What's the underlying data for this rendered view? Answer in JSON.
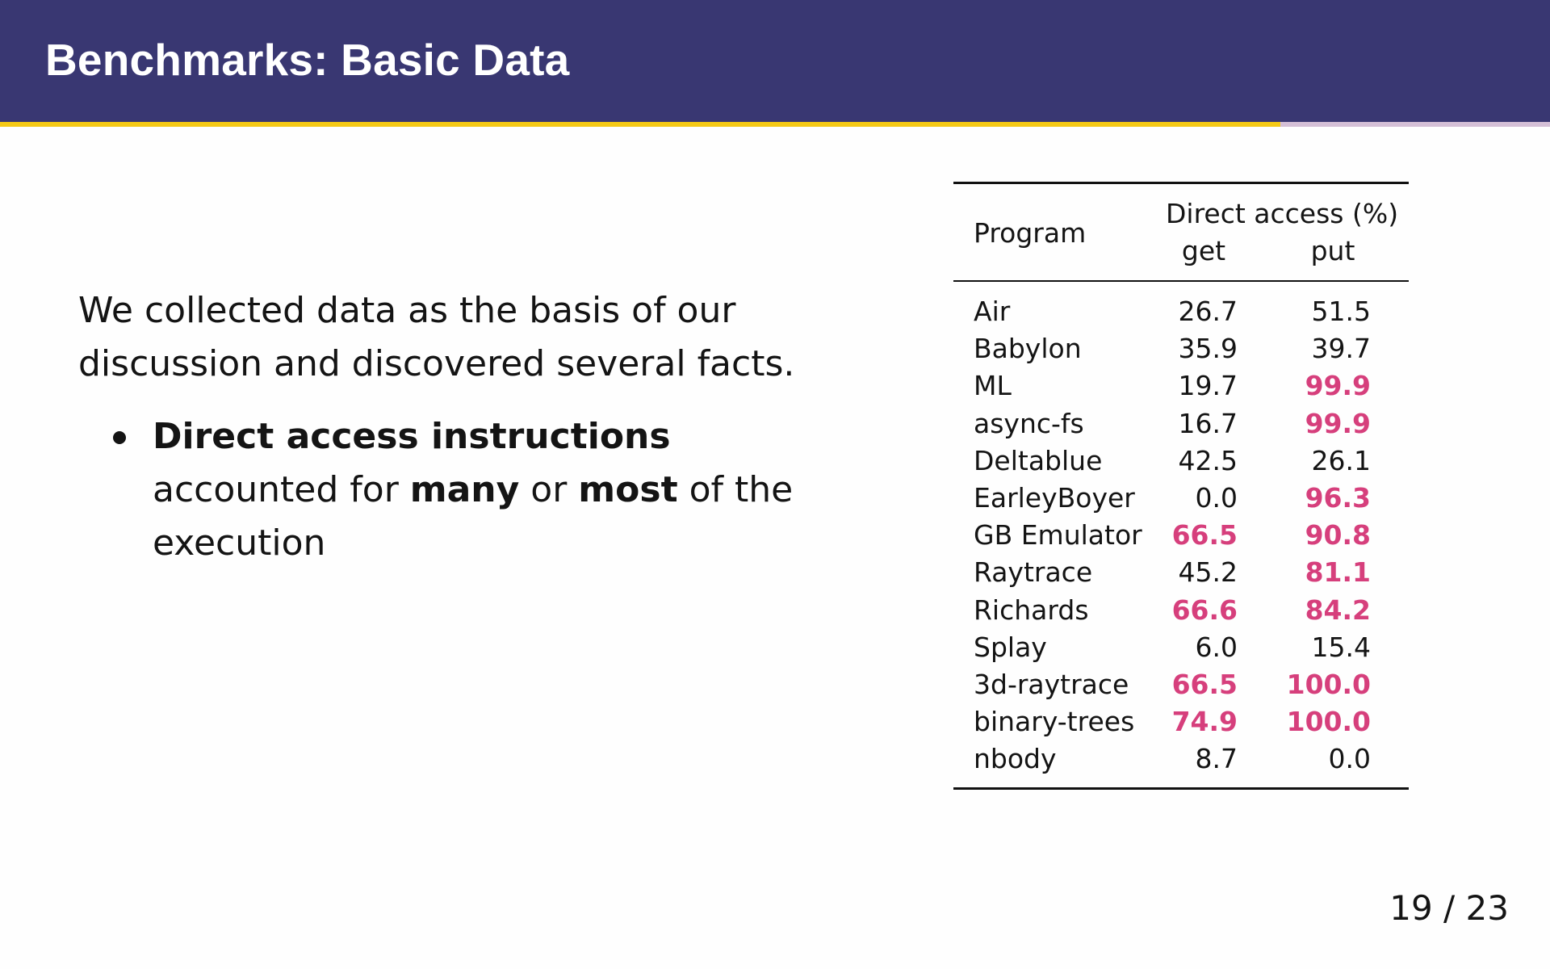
{
  "header": {
    "title": "Benchmarks: Basic Data"
  },
  "progress": {
    "fraction": 0.826,
    "fill_color": "#f5c916",
    "track_color": "#d4bfd6"
  },
  "body": {
    "intro": "We collected data as the basis of our discussion and discovered several facts.",
    "bullet": {
      "part1_bold": "Direct access instructions",
      "part2": " accounted for ",
      "part3_bold": "many",
      "part4": " or ",
      "part5_bold": "most",
      "part6": " of the execution"
    }
  },
  "table": {
    "col_program": "Program",
    "col_group": "Direct access (%)",
    "col_get": "get",
    "col_put": "put",
    "highlight_color": "#d63f7c",
    "rows": [
      {
        "name": "Air",
        "get": "26.7",
        "put": "51.5",
        "get_hl": false,
        "put_hl": false
      },
      {
        "name": "Babylon",
        "get": "35.9",
        "put": "39.7",
        "get_hl": false,
        "put_hl": false
      },
      {
        "name": "ML",
        "get": "19.7",
        "put": "99.9",
        "get_hl": false,
        "put_hl": true
      },
      {
        "name": "async-fs",
        "get": "16.7",
        "put": "99.9",
        "get_hl": false,
        "put_hl": true
      },
      {
        "name": "Deltablue",
        "get": "42.5",
        "put": "26.1",
        "get_hl": false,
        "put_hl": false
      },
      {
        "name": "EarleyBoyer",
        "get": "0.0",
        "put": "96.3",
        "get_hl": false,
        "put_hl": true
      },
      {
        "name": "GB Emulator",
        "get": "66.5",
        "put": "90.8",
        "get_hl": true,
        "put_hl": true
      },
      {
        "name": "Raytrace",
        "get": "45.2",
        "put": "81.1",
        "get_hl": false,
        "put_hl": true
      },
      {
        "name": "Richards",
        "get": "66.6",
        "put": "84.2",
        "get_hl": true,
        "put_hl": true
      },
      {
        "name": "Splay",
        "get": "6.0",
        "put": "15.4",
        "get_hl": false,
        "put_hl": false
      },
      {
        "name": "3d-raytrace",
        "get": "66.5",
        "put": "100.0",
        "get_hl": true,
        "put_hl": true
      },
      {
        "name": "binary-trees",
        "get": "74.9",
        "put": "100.0",
        "get_hl": true,
        "put_hl": true
      },
      {
        "name": "nbody",
        "get": "8.7",
        "put": "0.0",
        "get_hl": false,
        "put_hl": false
      }
    ]
  },
  "footer": {
    "page": "19 / 23"
  }
}
